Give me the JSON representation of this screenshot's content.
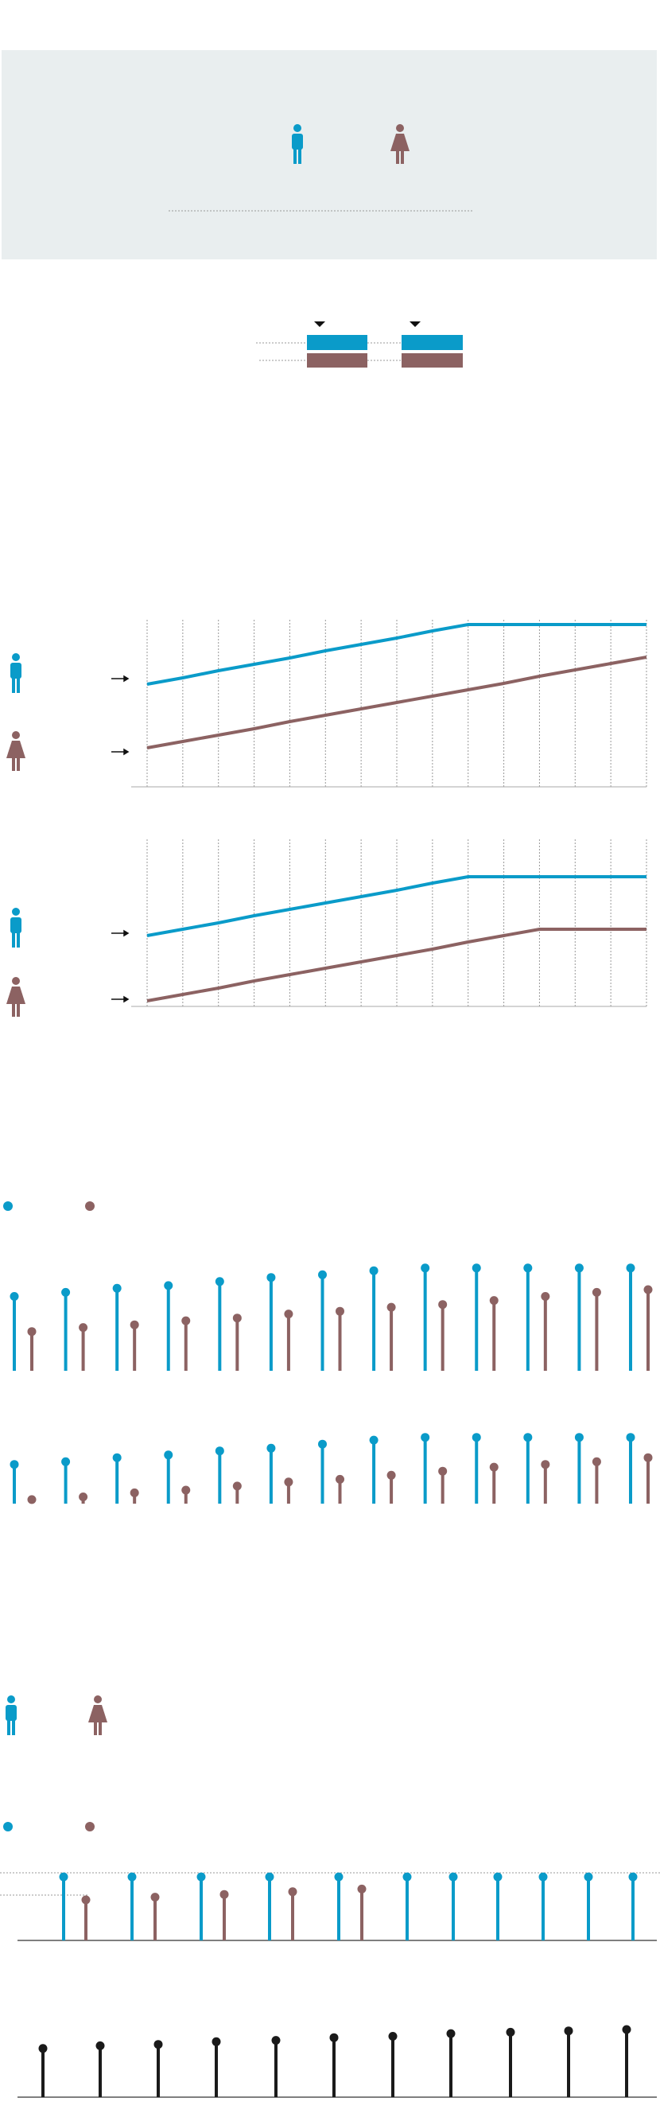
{
  "lines": [
    {
      "series": [
        {
          "color": "#0a9bc9",
          "values": [
            129,
            137,
            146,
            154,
            162,
            171,
            179,
            187,
            196,
            204,
            204,
            204,
            204,
            204,
            204
          ]
        },
        {
          "color": "#8c6262",
          "values": [
            49,
            57,
            65,
            73,
            82,
            90,
            98,
            106,
            114,
            122,
            130,
            139,
            147,
            155,
            163
          ]
        }
      ]
    },
    {
      "series": [
        {
          "color": "#0a9bc9",
          "values": [
            89,
            97,
            105,
            114,
            122,
            130,
            138,
            146,
            155,
            163,
            163,
            163,
            163,
            163,
            163
          ]
        },
        {
          "color": "#8c6262",
          "values": [
            7,
            15,
            23,
            32,
            40,
            48,
            56,
            64,
            72,
            81,
            89,
            97,
            97,
            97,
            97
          ]
        }
      ]
    }
  ],
  "lollipops": [
    {
      "series": [
        {
          "color": "#0a9bc9",
          "values": [
            55,
            58,
            61,
            63,
            66,
            69,
            71,
            74,
            76,
            76,
            76,
            76,
            76
          ]
        },
        {
          "color": "#8c6262",
          "values": [
            29,
            32,
            34,
            37,
            39,
            42,
            44,
            47,
            49,
            52,
            55,
            58,
            60
          ]
        }
      ]
    },
    {
      "series": [
        {
          "color": "#0a9bc9",
          "values": [
            29,
            31,
            34,
            36,
            39,
            41,
            44,
            47,
            49,
            49,
            49,
            49,
            49
          ]
        },
        {
          "color": "#8c6262",
          "values": [
            3,
            5,
            8,
            10,
            13,
            16,
            18,
            21,
            24,
            27,
            29,
            31,
            34
          ]
        }
      ]
    },
    {
      "series": [
        {
          "color": "#0a9bc9",
          "values": [
            47,
            47,
            47,
            47,
            47,
            47,
            47,
            47,
            47,
            47,
            47
          ]
        },
        {
          "color": "#8c6262",
          "values": [
            30,
            32,
            34,
            36,
            38
          ]
        }
      ]
    },
    {
      "series": [
        {
          "color": "#1a1a1a",
          "values": [
            36,
            38,
            39,
            41,
            42,
            44,
            45,
            47,
            48,
            49,
            50
          ]
        }
      ]
    }
  ]
}
